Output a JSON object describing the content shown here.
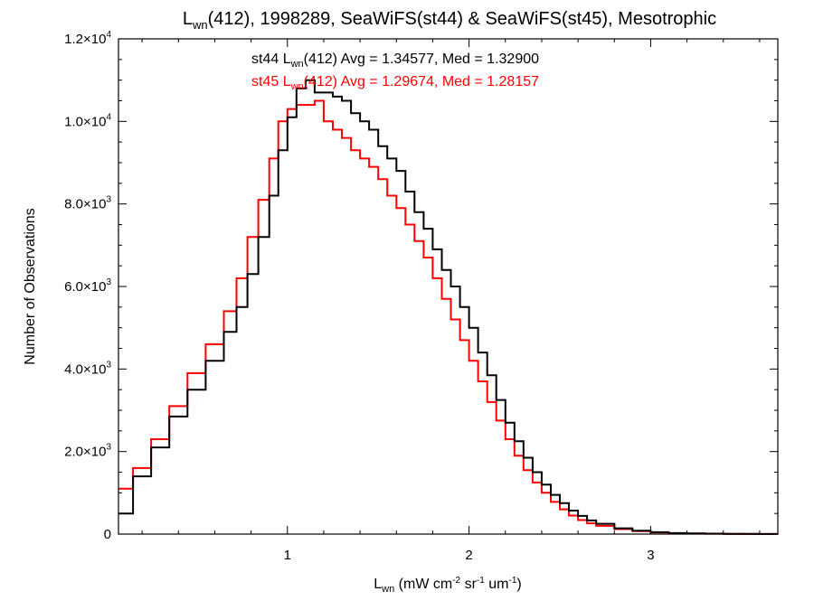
{
  "chart_data": {
    "type": "line",
    "title": {
      "prefix": "L",
      "sub": "wn",
      "suffix": "(412), 1998289, SeaWiFS(st44) & SeaWiFS(st45), Mesotrophic"
    },
    "xlabel": {
      "prefix": "L",
      "sub": "wn",
      "p1": " (mW cm",
      "s1": "-2",
      "p2": " sr",
      "s2": "-1",
      "p3": " um",
      "s3": "-1",
      "p4": ")"
    },
    "ylabel": "Number of Observations",
    "xlim": [
      0.07,
      3.7
    ],
    "ylim": [
      0,
      12000
    ],
    "xticks": [
      {
        "value": 1,
        "label": "1"
      },
      {
        "value": 2,
        "label": "2"
      },
      {
        "value": 3,
        "label": "3"
      }
    ],
    "yticks": [
      {
        "value": 0,
        "label": "0",
        "mant": "0",
        "exp": ""
      },
      {
        "value": 2000,
        "label": "2.0×10³",
        "mant": "2.0×10",
        "exp": "3"
      },
      {
        "value": 4000,
        "label": "4.0×10³",
        "mant": "4.0×10",
        "exp": "3"
      },
      {
        "value": 6000,
        "label": "6.0×10³",
        "mant": "6.0×10",
        "exp": "3"
      },
      {
        "value": 8000,
        "label": "8.0×10³",
        "mant": "8.0×10",
        "exp": "3"
      },
      {
        "value": 10000,
        "label": "1.0×10⁴",
        "mant": "1.0×10",
        "exp": "4"
      },
      {
        "value": 12000,
        "label": "1.2×10⁴",
        "mant": "1.2×10",
        "exp": "4"
      }
    ],
    "series": [
      {
        "key": "st44",
        "color": "#000000",
        "stats": {
          "pre": "st44 L",
          "sub": "wn",
          "post": "(412) Avg = 1.34577, Med = 1.32900"
        },
        "x": [
          0.07,
          0.15,
          0.25,
          0.35,
          0.45,
          0.55,
          0.65,
          0.72,
          0.78,
          0.84,
          0.9,
          0.95,
          1.0,
          1.05,
          1.1,
          1.15,
          1.2,
          1.25,
          1.3,
          1.35,
          1.4,
          1.45,
          1.5,
          1.55,
          1.6,
          1.65,
          1.7,
          1.75,
          1.8,
          1.85,
          1.9,
          1.95,
          2.0,
          2.05,
          2.1,
          2.15,
          2.2,
          2.25,
          2.3,
          2.35,
          2.4,
          2.45,
          2.5,
          2.55,
          2.6,
          2.65,
          2.7,
          2.8,
          2.9,
          3.0,
          3.1,
          3.2,
          3.3,
          3.4,
          3.5,
          3.6,
          3.7
        ],
        "y": [
          500,
          1400,
          2100,
          2850,
          3500,
          4200,
          4900,
          5500,
          6300,
          7200,
          8200,
          9300,
          10100,
          10800,
          11000,
          10700,
          10700,
          10600,
          10500,
          10200,
          10000,
          9800,
          9400,
          9100,
          8800,
          8300,
          7800,
          7400,
          6900,
          6400,
          6000,
          5500,
          5000,
          4400,
          3850,
          3250,
          2700,
          2250,
          1850,
          1500,
          1200,
          950,
          750,
          570,
          440,
          330,
          250,
          140,
          80,
          45,
          25,
          15,
          10,
          6,
          4,
          3,
          2
        ]
      },
      {
        "key": "st45",
        "color": "#ff0000",
        "stats": {
          "pre": "st45 L",
          "sub": "wn",
          "post": "(412) Avg = 1.29674, Med = 1.28157"
        },
        "x": [
          0.07,
          0.15,
          0.25,
          0.35,
          0.45,
          0.55,
          0.65,
          0.72,
          0.78,
          0.84,
          0.9,
          0.95,
          1.0,
          1.05,
          1.1,
          1.15,
          1.2,
          1.25,
          1.3,
          1.35,
          1.4,
          1.45,
          1.5,
          1.55,
          1.6,
          1.65,
          1.7,
          1.75,
          1.8,
          1.85,
          1.9,
          1.95,
          2.0,
          2.05,
          2.1,
          2.15,
          2.2,
          2.25,
          2.3,
          2.35,
          2.4,
          2.45,
          2.5,
          2.55,
          2.6,
          2.65,
          2.7,
          2.8,
          2.9,
          3.0,
          3.1,
          3.2,
          3.3,
          3.4,
          3.5,
          3.6,
          3.7
        ],
        "y": [
          1100,
          1600,
          2300,
          3100,
          3900,
          4600,
          5400,
          6200,
          7200,
          8100,
          9100,
          10000,
          10300,
          10400,
          10400,
          10500,
          10000,
          9800,
          9600,
          9300,
          9100,
          8900,
          8600,
          8200,
          7900,
          7500,
          7100,
          6700,
          6200,
          5700,
          5200,
          4700,
          4200,
          3700,
          3200,
          2750,
          2300,
          1900,
          1550,
          1250,
          1000,
          780,
          600,
          450,
          340,
          260,
          200,
          120,
          70,
          40,
          22,
          13,
          8,
          5,
          3,
          2,
          1
        ]
      }
    ]
  }
}
